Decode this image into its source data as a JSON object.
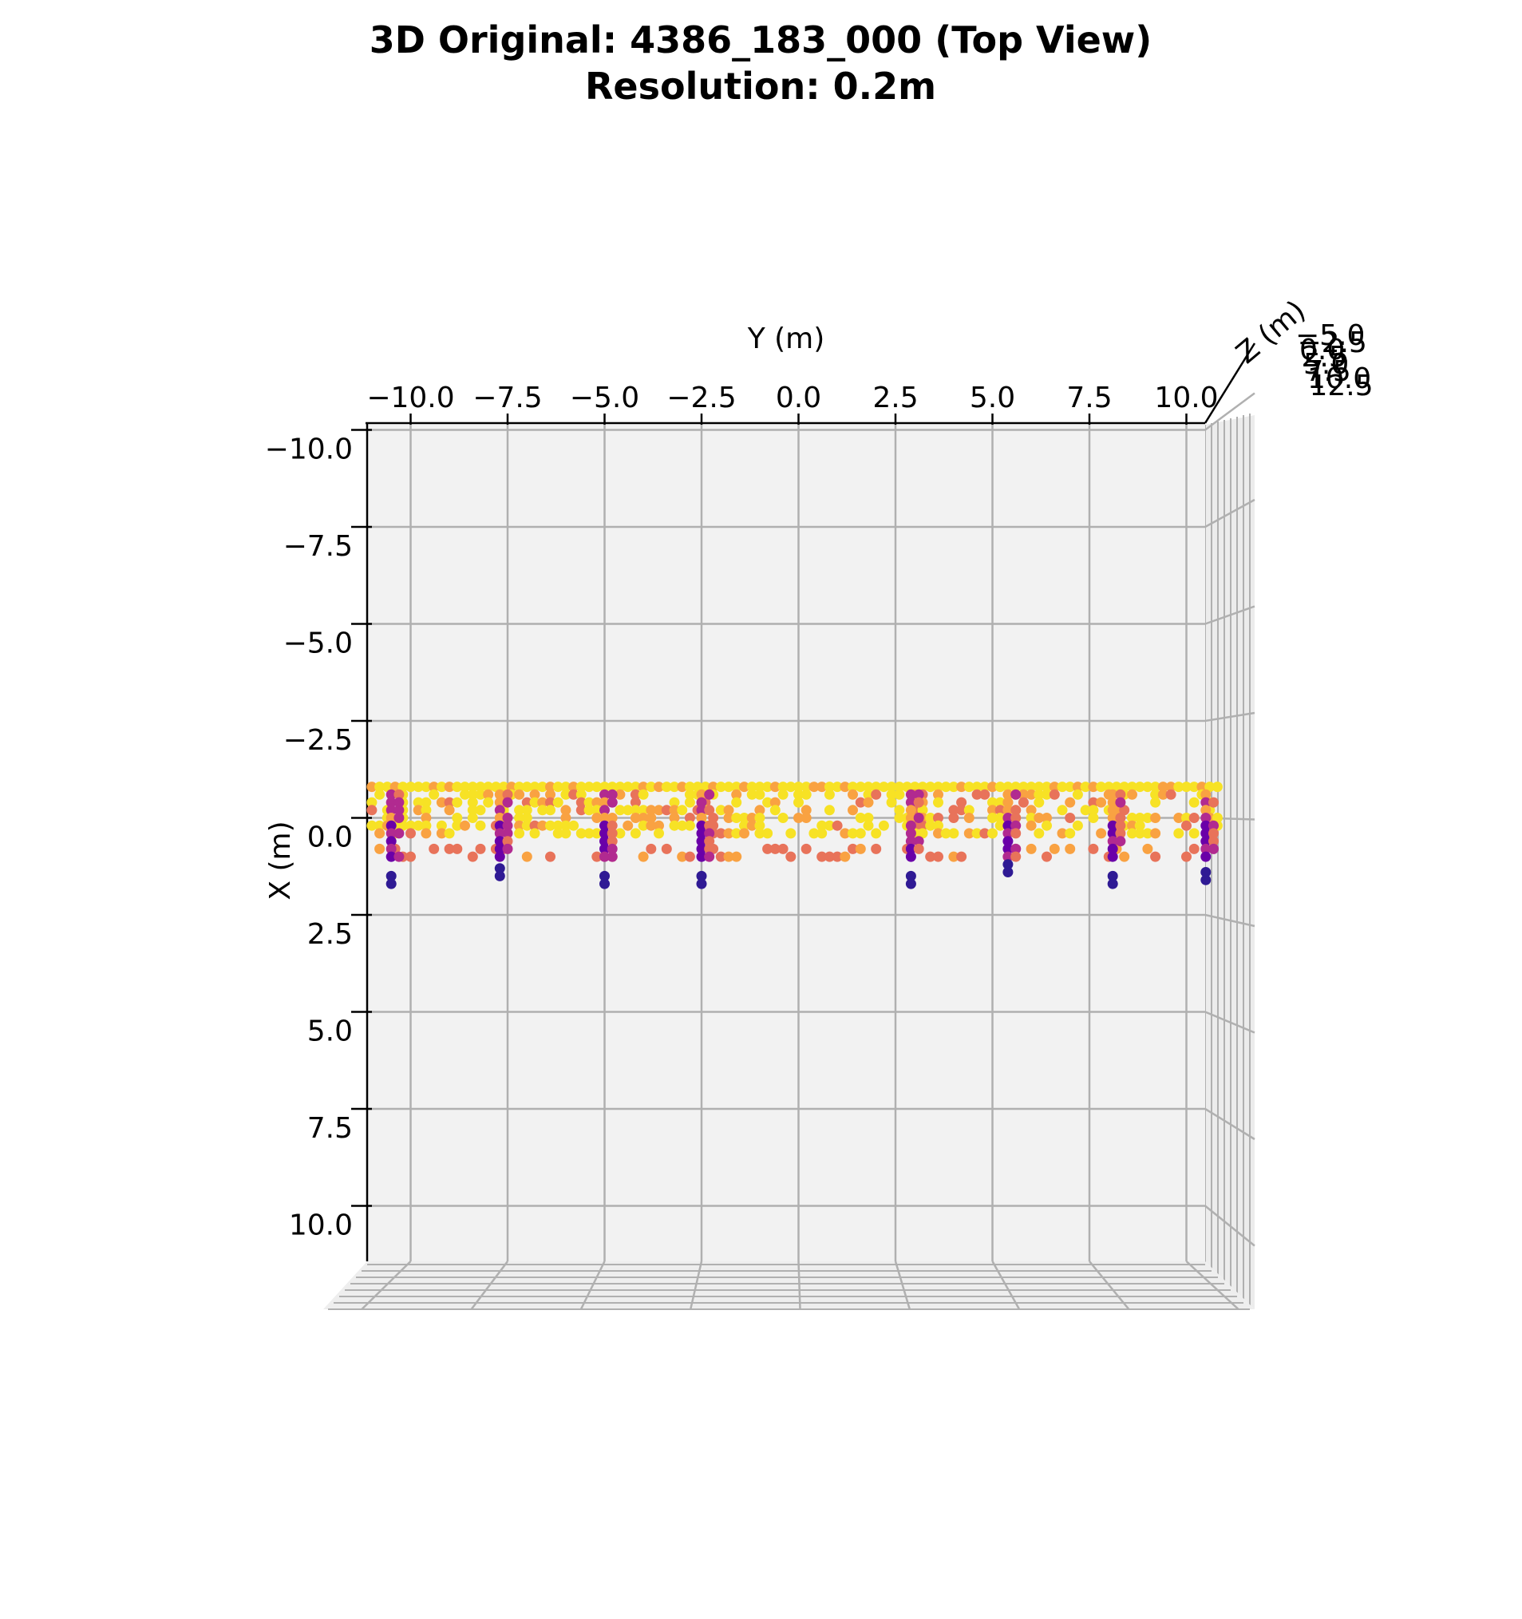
{
  "chart_data": {
    "type": "scatter",
    "projection": "3d-top-view",
    "title_line1": "3D Original: 4386_183_000 (Top View)",
    "title_line2": "Resolution: 0.2m",
    "xlabel": "Y (m)",
    "ylabel": "X (m)",
    "zlabel": "Z (m)",
    "y_ticks": [
      "−10.0",
      "−7.5",
      "−5.0",
      "−2.5",
      "0.0",
      "2.5",
      "5.0",
      "7.5",
      "10.0"
    ],
    "x_ticks": [
      "−10.0",
      "−7.5",
      "−5.0",
      "−2.5",
      "0.0",
      "2.5",
      "5.0",
      "7.5",
      "10.0"
    ],
    "z_ticks": [
      "12.5",
      "10.0",
      "7.5",
      "5.0",
      "2.5",
      "0.0",
      "−2.5",
      "−5.0"
    ],
    "xlim": [
      -11.1,
      10.6
    ],
    "ylim": [
      -10.6,
      11.1
    ],
    "grid": true,
    "colormap": "plasma",
    "colors": {
      "yellow": "#f7e225",
      "orange": "#f9a242",
      "salmon": "#e8735a",
      "magenta": "#b12a90",
      "purple": "#6a00a8",
      "navy": "#2f1a94",
      "pane": "#f2f2f2",
      "grid": "#b0b0b0"
    },
    "structure": {
      "band_top_x": -0.8,
      "band_bottom_x": 1.1,
      "post_y": [
        -10.5,
        -7.7,
        -5.0,
        -2.5,
        2.9,
        5.4,
        8.1,
        10.5
      ],
      "post_bottom_x": [
        1.7,
        1.5,
        1.7,
        1.7,
        1.7,
        1.4,
        1.7,
        1.6
      ]
    }
  }
}
